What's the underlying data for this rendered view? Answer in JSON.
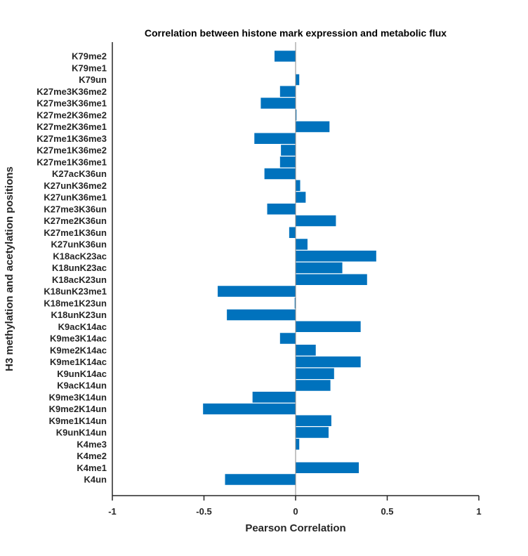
{
  "chart_data": {
    "type": "bar",
    "orientation": "horizontal",
    "title": "Correlation between histone mark expression and metabolic flux",
    "xlabel": "Pearson Correlation",
    "ylabel": "H3 methylation and acetylation positions",
    "xlim": [
      -1,
      1
    ],
    "xticks": [
      -1,
      -0.5,
      0,
      0.5,
      1
    ],
    "xtick_labels": [
      "-1",
      "-0.5",
      "0",
      "0.5",
      "1"
    ],
    "grid": false,
    "bar_color": "#0072BD",
    "categories": [
      "K4un",
      "K4me1",
      "K4me2",
      "K4me3",
      "K9unK14un",
      "K9me1K14un",
      "K9me2K14un",
      "K9me3K14un",
      "K9acK14un",
      "K9unK14ac",
      "K9me1K14ac",
      "K9me2K14ac",
      "K9me3K14ac",
      "K9acK14ac",
      "K18unK23un",
      "K18me1K23un",
      "K18unK23me1",
      "K18acK23un",
      "K18unK23ac",
      "K18acK23ac",
      "K27unK36un",
      "K27me1K36un",
      "K27me2K36un",
      "K27me3K36un",
      "K27unK36me1",
      "K27unK36me2",
      "K27acK36un",
      "K27me1K36me1",
      "K27me1K36me2",
      "K27me1K36me3",
      "K27me2K36me1",
      "K27me2K36me2",
      "K27me3K36me1",
      "K27me3K36me2",
      "K79un",
      "K79me1",
      "K79me2"
    ],
    "values": [
      -0.385,
      0.345,
      0,
      0.02,
      0.18,
      0.195,
      -0.505,
      -0.235,
      0.19,
      0.21,
      0.355,
      0.11,
      -0.085,
      0.355,
      -0.375,
      -0.005,
      -0.425,
      0.39,
      0.255,
      0.44,
      0.065,
      -0.035,
      0.22,
      -0.155,
      0.055,
      0.025,
      -0.17,
      -0.085,
      -0.08,
      -0.225,
      0.185,
      0.005,
      -0.19,
      -0.085,
      0.02,
      0,
      -0.115
    ]
  }
}
